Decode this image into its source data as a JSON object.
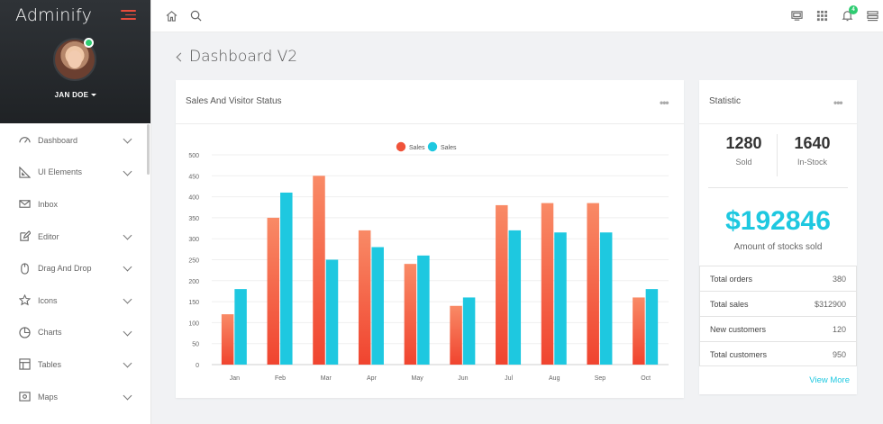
{
  "app": {
    "brand": "Adminify"
  },
  "user": {
    "name": "JAN DOE"
  },
  "sidebar": {
    "items": [
      {
        "label": "Dashboard",
        "icon": "dashboard-icon",
        "has_submenu": true
      },
      {
        "label": "UI Elements",
        "icon": "ruler-icon",
        "has_submenu": true
      },
      {
        "label": "Inbox",
        "icon": "mail-icon",
        "has_submenu": false
      },
      {
        "label": "Editor",
        "icon": "edit-icon",
        "has_submenu": true
      },
      {
        "label": "Drag And Drop",
        "icon": "mouse-icon",
        "has_submenu": true
      },
      {
        "label": "Icons",
        "icon": "star-icon",
        "has_submenu": true
      },
      {
        "label": "Charts",
        "icon": "pie-chart-icon",
        "has_submenu": true
      },
      {
        "label": "Tables",
        "icon": "table-icon",
        "has_submenu": true
      },
      {
        "label": "Maps",
        "icon": "map-icon",
        "has_submenu": true
      }
    ]
  },
  "topbar": {
    "notification_count": "4"
  },
  "page": {
    "title": "Dashboard V2"
  },
  "sales_card": {
    "title": "Sales And Visitor Status"
  },
  "chart_data": {
    "type": "bar",
    "categories": [
      "Jan",
      "Feb",
      "Mar",
      "Apr",
      "May",
      "Jun",
      "Jul",
      "Aug",
      "Sep",
      "Oct"
    ],
    "series": [
      {
        "name": "Sales",
        "color": "#f0533a",
        "values": [
          120,
          350,
          450,
          320,
          240,
          140,
          380,
          385,
          385,
          160
        ]
      },
      {
        "name": "Sales",
        "color": "#1ec8e0",
        "values": [
          180,
          410,
          250,
          280,
          260,
          160,
          320,
          315,
          315,
          180
        ]
      }
    ],
    "yticks": [
      0,
      50,
      100,
      150,
      200,
      250,
      300,
      350,
      400,
      450,
      500
    ],
    "ylim": [
      0,
      500
    ],
    "legend": "top-center",
    "grid": true
  },
  "stat_card": {
    "title": "Statistic",
    "sold_value": "1280",
    "sold_label": "Sold",
    "stock_value": "1640",
    "stock_label": "In-Stock",
    "amount": "$192846",
    "amount_label": "Amount of stocks sold",
    "rows": [
      {
        "label": "Total orders",
        "value": "380"
      },
      {
        "label": "Total sales",
        "value": "$312900"
      },
      {
        "label": "New customers",
        "value": "120"
      },
      {
        "label": "Total customers",
        "value": "950"
      }
    ],
    "view_more": "View More"
  }
}
